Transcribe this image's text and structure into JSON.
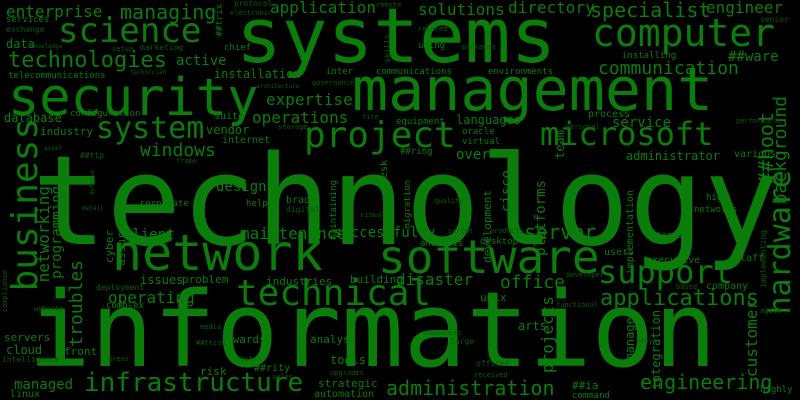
{
  "word_cloud": {
    "colors": {
      "background": "#000000",
      "primary": "#0a7d0a",
      "dim": "#075e07"
    },
    "words": {
      "technology": "technology",
      "information": "information",
      "systems": "systems",
      "management": "management",
      "security": "security",
      "network": "network",
      "software": "software",
      "technical": "technical",
      "project": "project",
      "computer": "computer",
      "microsoft": "microsoft",
      "science": "science",
      "business": "business",
      "support": "support",
      "hardware": "hardware",
      "system": "system",
      "infrastructure": "infrastructure",
      "administration": "administration",
      "engineering": "engineering",
      "applications": "applications",
      "technologies": "technologies",
      "managing": "managing",
      "enterprise": "enterprise",
      "specialist": "specialist",
      "solutions": "solutions",
      "application": "application",
      "directory": "directory",
      "engineer": "engineer",
      "communication": "communication",
      "expertise": "expertise",
      "windows": "windows",
      "operations": "operations",
      "server": "server",
      "service": "service",
      "maintenance": "maintenance",
      "client": "client",
      "design": "design",
      "office": "office",
      "operating": "operating",
      "disaster": "disaster",
      "troubleshoot": "##hoot",
      "background": "background",
      "networking": "networking",
      "programming": "programming",
      "troubles": "troubles",
      "cisco": "cisco",
      "platforms": "platforms",
      "projects": "projects",
      "customer": "customer",
      "managed": "managed",
      "installation": "installation",
      "active": "active",
      "data": "data",
      "database": "database",
      "industry": "industry",
      "languages": "languages",
      "over": "over",
      "team": "team",
      "vendor": "vendor",
      "internet": "internet",
      "suite": "suite",
      "configuration": "configuration",
      "equipment": "equipment",
      "oracle": "oracle",
      "virtual": "virtual",
      "process": "process",
      "administrator": "administrator",
      "various": "various",
      "successfully": "successfully",
      "issues": "issues",
      "problem": "problem",
      "industries": "industries",
      "building": "building",
      "unix": "unix",
      "company": "company",
      "applications_small": "applications",
      "cloud": "cloud",
      "servers": "servers",
      "front": "front",
      "linux": "linux",
      "intelligence": "intelligence",
      "awards": "awards",
      "analyst": "analyst",
      "tools": "tools",
      "risk": "risk",
      "strategic": "strategic",
      "automation": "automation",
      "command": "command",
      "highly": "highly",
      "arts": "arts",
      "manager": "manager",
      "integration": "integration",
      "implementation": "implementation",
      "executive": "executive",
      "users": "users",
      "staff": "staff",
      "networks": "networks",
      "high": "high",
      "teams": "teams",
      "corporate": "corporate",
      "help": "help",
      "brad": "brad",
      "digital": "digital",
      "desk": "desk",
      "development": "development",
      "migration": "migration",
      "analysis": "analysis",
      "desktop": "desktop",
      "maintaining": "maintaining",
      "complex": "complex",
      "deployment": "deployment",
      "cyber": "cyber",
      "assurance": "assurance",
      "services": "services",
      "exchange": "exchange",
      "telecommunications": "telecommunications",
      "marketing": "marketing",
      "chief": "chief",
      "setup": "setup",
      "inter": "inter",
      "communications": "communications",
      "environments": "environments",
      "installing": "installing",
      "ware": "##ware",
      "senior": "senior",
      "protocol": "protocol",
      "electronic": "electronic",
      "remote": "remote",
      "related": "related",
      "using": "using",
      "packages": "packages",
      "skills": "skills",
      "trix": "##trix",
      "frame": "frame",
      "rity": "##rity",
      "ia": "##ia",
      "ring": "##ring",
      "officer": "officer",
      "received": "received",
      "large": "large",
      "media": "media",
      "cost": "cost",
      "areas": "areas",
      "sales": "sales",
      "upgrades": "upgrades",
      "companies": "companies",
      "functional": "functional",
      "developer": "developer",
      "kenya": "kenya",
      "based": "based",
      "agile": "agile",
      "implementing": "implementing",
      "performance": "performance",
      "storage": "storage",
      "fire": "fire",
      "quality": "quality",
      "script": "script",
      "products": "products",
      "visual": "visual",
      "governance": "governance",
      "architecture": "architecture",
      "ttp": "##ttp",
      "ttion": "##ttion",
      "website": "website",
      "compliance": "compliance",
      "knowledge": "knowledge",
      "technician": "technician",
      "detail": "detail",
      "defense": "defense",
      "asset": "asset",
      "personal": "personal"
    }
  }
}
